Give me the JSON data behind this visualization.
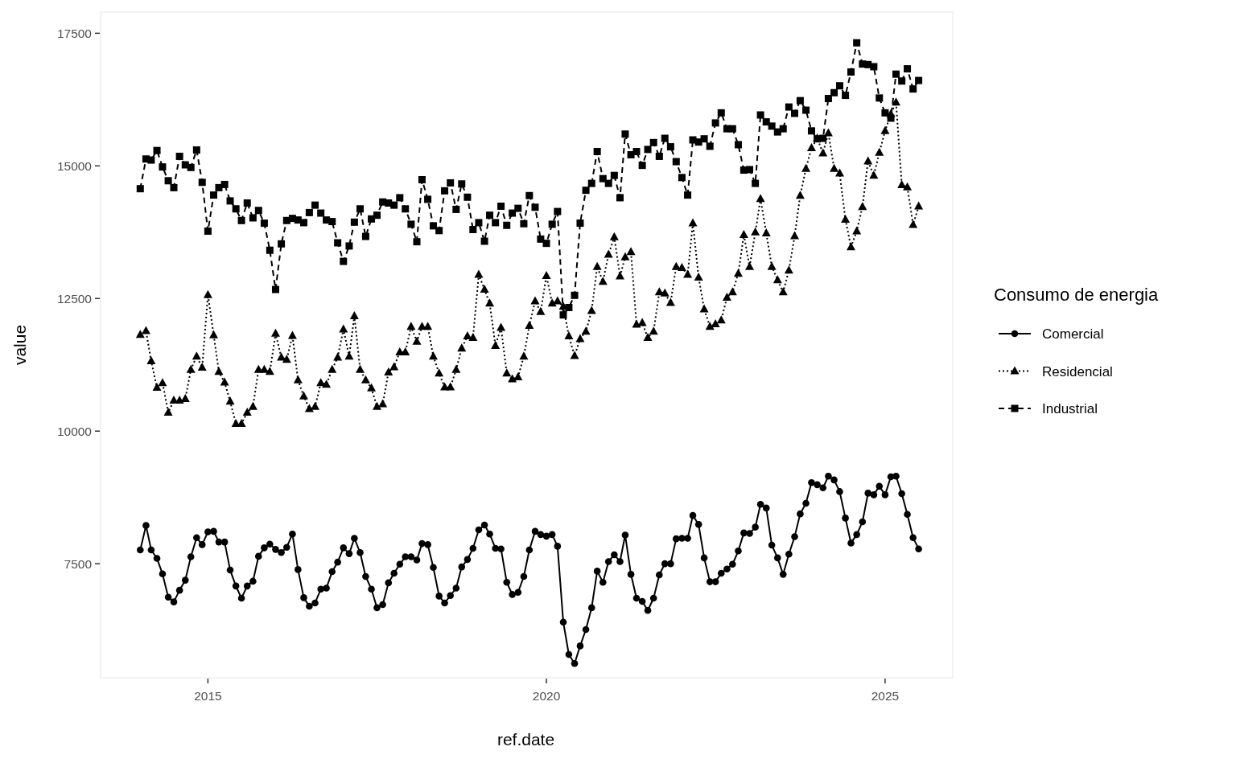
{
  "chart_data": {
    "type": "line",
    "xlabel": "ref.date",
    "ylabel": "value",
    "legend_title": "Consumo de energia",
    "legend": "right",
    "x": [
      "2014-01",
      "2014-02",
      "2014-03",
      "2014-04",
      "2014-05",
      "2014-06",
      "2014-07",
      "2014-08",
      "2014-09",
      "2014-10",
      "2014-11",
      "2014-12",
      "2015-01",
      "2015-02",
      "2015-03",
      "2015-04",
      "2015-05",
      "2015-06",
      "2015-07",
      "2015-08",
      "2015-09",
      "2015-10",
      "2015-11",
      "2015-12",
      "2016-01",
      "2016-02",
      "2016-03",
      "2016-04",
      "2016-05",
      "2016-06",
      "2016-07",
      "2016-08",
      "2016-09",
      "2016-10",
      "2016-11",
      "2016-12",
      "2017-01",
      "2017-02",
      "2017-03",
      "2017-04",
      "2017-05",
      "2017-06",
      "2017-07",
      "2017-08",
      "2017-09",
      "2017-10",
      "2017-11",
      "2017-12",
      "2018-01",
      "2018-02",
      "2018-03",
      "2018-04",
      "2018-05",
      "2018-06",
      "2018-07",
      "2018-08",
      "2018-09",
      "2018-10",
      "2018-11",
      "2018-12",
      "2019-01",
      "2019-02",
      "2019-03",
      "2019-04",
      "2019-05",
      "2019-06",
      "2019-07",
      "2019-08",
      "2019-09",
      "2019-10",
      "2019-11",
      "2019-12",
      "2020-01",
      "2020-02",
      "2020-03",
      "2020-04",
      "2020-05",
      "2020-06",
      "2020-07",
      "2020-08",
      "2020-09",
      "2020-10",
      "2020-11",
      "2020-12",
      "2021-01",
      "2021-02",
      "2021-03",
      "2021-04",
      "2021-05",
      "2021-06",
      "2021-07",
      "2021-08",
      "2021-09",
      "2021-10",
      "2021-11",
      "2021-12",
      "2022-01",
      "2022-02",
      "2022-03",
      "2022-04",
      "2022-05",
      "2022-06",
      "2022-07",
      "2022-08",
      "2022-09",
      "2022-10",
      "2022-11",
      "2022-12",
      "2023-01",
      "2023-02",
      "2023-03",
      "2023-04",
      "2023-05",
      "2023-06",
      "2023-07",
      "2023-08",
      "2023-09",
      "2023-10",
      "2023-11",
      "2023-12",
      "2024-01",
      "2024-02",
      "2024-03",
      "2024-04",
      "2024-05",
      "2024-06",
      "2024-07",
      "2024-08",
      "2024-09",
      "2024-10",
      "2024-11",
      "2024-12",
      "2025-01",
      "2025-02",
      "2025-03",
      "2025-04",
      "2025-05",
      "2025-06",
      "2025-07"
    ],
    "xlim": [
      "2013-06",
      "2026-01"
    ],
    "xticks": [
      "2015",
      "2020",
      "2025"
    ],
    "ylim": [
      5350,
      17900
    ],
    "yticks": [
      7500,
      10000,
      12500,
      15000,
      17500
    ],
    "series": [
      {
        "name": "Comercial",
        "color": "#000000",
        "marker": "circle",
        "line_style": "solid",
        "values": [
          7760,
          8220,
          7760,
          7600,
          7310,
          6870,
          6780,
          7000,
          7190,
          7630,
          7990,
          7860,
          8100,
          8110,
          7910,
          7910,
          7380,
          7080,
          6850,
          7080,
          7170,
          7640,
          7800,
          7870,
          7770,
          7710,
          7810,
          8060,
          7390,
          6860,
          6700,
          6760,
          7020,
          7040,
          7350,
          7530,
          7800,
          7690,
          7980,
          7710,
          7260,
          7020,
          6670,
          6730,
          7140,
          7320,
          7490,
          7630,
          7630,
          7570,
          7880,
          7860,
          7430,
          6890,
          6760,
          6900,
          7040,
          7440,
          7580,
          7790,
          8140,
          8230,
          8060,
          7790,
          7780,
          7150,
          6920,
          6960,
          7260,
          7760,
          8110,
          8050,
          8020,
          8050,
          7830,
          6400,
          5790,
          5620,
          5950,
          6260,
          6670,
          7360,
          7150,
          7540,
          7670,
          7540,
          8040,
          7300,
          6850,
          6790,
          6620,
          6850,
          7290,
          7500,
          7500,
          7970,
          7980,
          7980,
          8410,
          8240,
          7610,
          7160,
          7160,
          7320,
          7400,
          7490,
          7740,
          8080,
          8070,
          8190,
          8620,
          8550,
          7850,
          7610,
          7300,
          7680,
          8010,
          8440,
          8640,
          9030,
          8990,
          8930,
          9150,
          9080,
          8860,
          8360,
          7890,
          8050,
          8290,
          8830,
          8800,
          8960,
          8800,
          9140,
          9150,
          8820,
          8430,
          7990,
          7780
        ]
      },
      {
        "name": "Residencial",
        "color": "#000000",
        "marker": "triangle",
        "line_style": "dotted",
        "values": [
          11820,
          11890,
          11320,
          10820,
          10910,
          10350,
          10580,
          10580,
          10610,
          11160,
          11410,
          11200,
          12570,
          11810,
          11120,
          10920,
          10560,
          10140,
          10140,
          10350,
          10460,
          11160,
          11160,
          11120,
          11840,
          11390,
          11350,
          11800,
          10960,
          10660,
          10420,
          10460,
          10910,
          10880,
          11160,
          11390,
          11920,
          11410,
          12170,
          11160,
          10960,
          10810,
          10460,
          10510,
          11110,
          11210,
          11490,
          11490,
          11970,
          11690,
          11970,
          11970,
          11410,
          11090,
          10830,
          10830,
          11160,
          11560,
          11790,
          11760,
          12950,
          12670,
          12410,
          11610,
          11950,
          11090,
          10980,
          11020,
          11410,
          11990,
          12450,
          12250,
          12930,
          12410,
          12450,
          12350,
          11790,
          11420,
          11740,
          11880,
          12270,
          13100,
          12820,
          13330,
          13660,
          12920,
          13280,
          13380,
          12010,
          12040,
          11760,
          11880,
          12620,
          12600,
          12420,
          13100,
          13080,
          12950,
          13920,
          12900,
          12300,
          11970,
          12020,
          12090,
          12520,
          12620,
          12970,
          13700,
          13100,
          13750,
          14380,
          13730,
          13100,
          12850,
          12620,
          13030,
          13680,
          14440,
          14950,
          15340,
          15520,
          15240,
          15620,
          14950,
          14860,
          13990,
          13470,
          13770,
          14230,
          15090,
          14820,
          15250,
          15660,
          15980,
          16200,
          14640,
          14600,
          13890,
          14240
        ]
      },
      {
        "name": "Industrial",
        "color": "#000000",
        "marker": "square",
        "line_style": "dashed",
        "values": [
          14570,
          15130,
          15110,
          15290,
          14980,
          14720,
          14590,
          15180,
          15020,
          14970,
          15300,
          14690,
          13770,
          14450,
          14590,
          14650,
          14340,
          14190,
          13970,
          14300,
          14020,
          14160,
          13920,
          13410,
          12670,
          13530,
          13970,
          14010,
          13980,
          13930,
          14120,
          14260,
          14110,
          13980,
          13950,
          13550,
          13200,
          13490,
          13940,
          14190,
          13670,
          14000,
          14070,
          14320,
          14300,
          14260,
          14400,
          14190,
          13900,
          13570,
          14740,
          14370,
          13870,
          13780,
          14530,
          14680,
          14180,
          14660,
          14410,
          13800,
          13930,
          13580,
          14070,
          13930,
          14240,
          13880,
          14110,
          14200,
          13910,
          14440,
          14220,
          13620,
          13540,
          13900,
          14140,
          12190,
          12330,
          12560,
          13920,
          14540,
          14670,
          15270,
          14760,
          14670,
          14820,
          14400,
          15600,
          15210,
          15270,
          15010,
          15310,
          15440,
          15180,
          15520,
          15360,
          15080,
          14780,
          14450,
          15490,
          15450,
          15510,
          15370,
          15810,
          16000,
          15700,
          15700,
          15400,
          14920,
          14930,
          14670,
          15960,
          15830,
          15750,
          15640,
          15700,
          16110,
          15990,
          16230,
          16050,
          15660,
          15510,
          15520,
          16270,
          16380,
          16510,
          16330,
          16770,
          17320,
          16920,
          16910,
          16870,
          16280,
          16000,
          15900,
          16730,
          16600,
          16830,
          16450,
          16610
        ]
      }
    ]
  }
}
